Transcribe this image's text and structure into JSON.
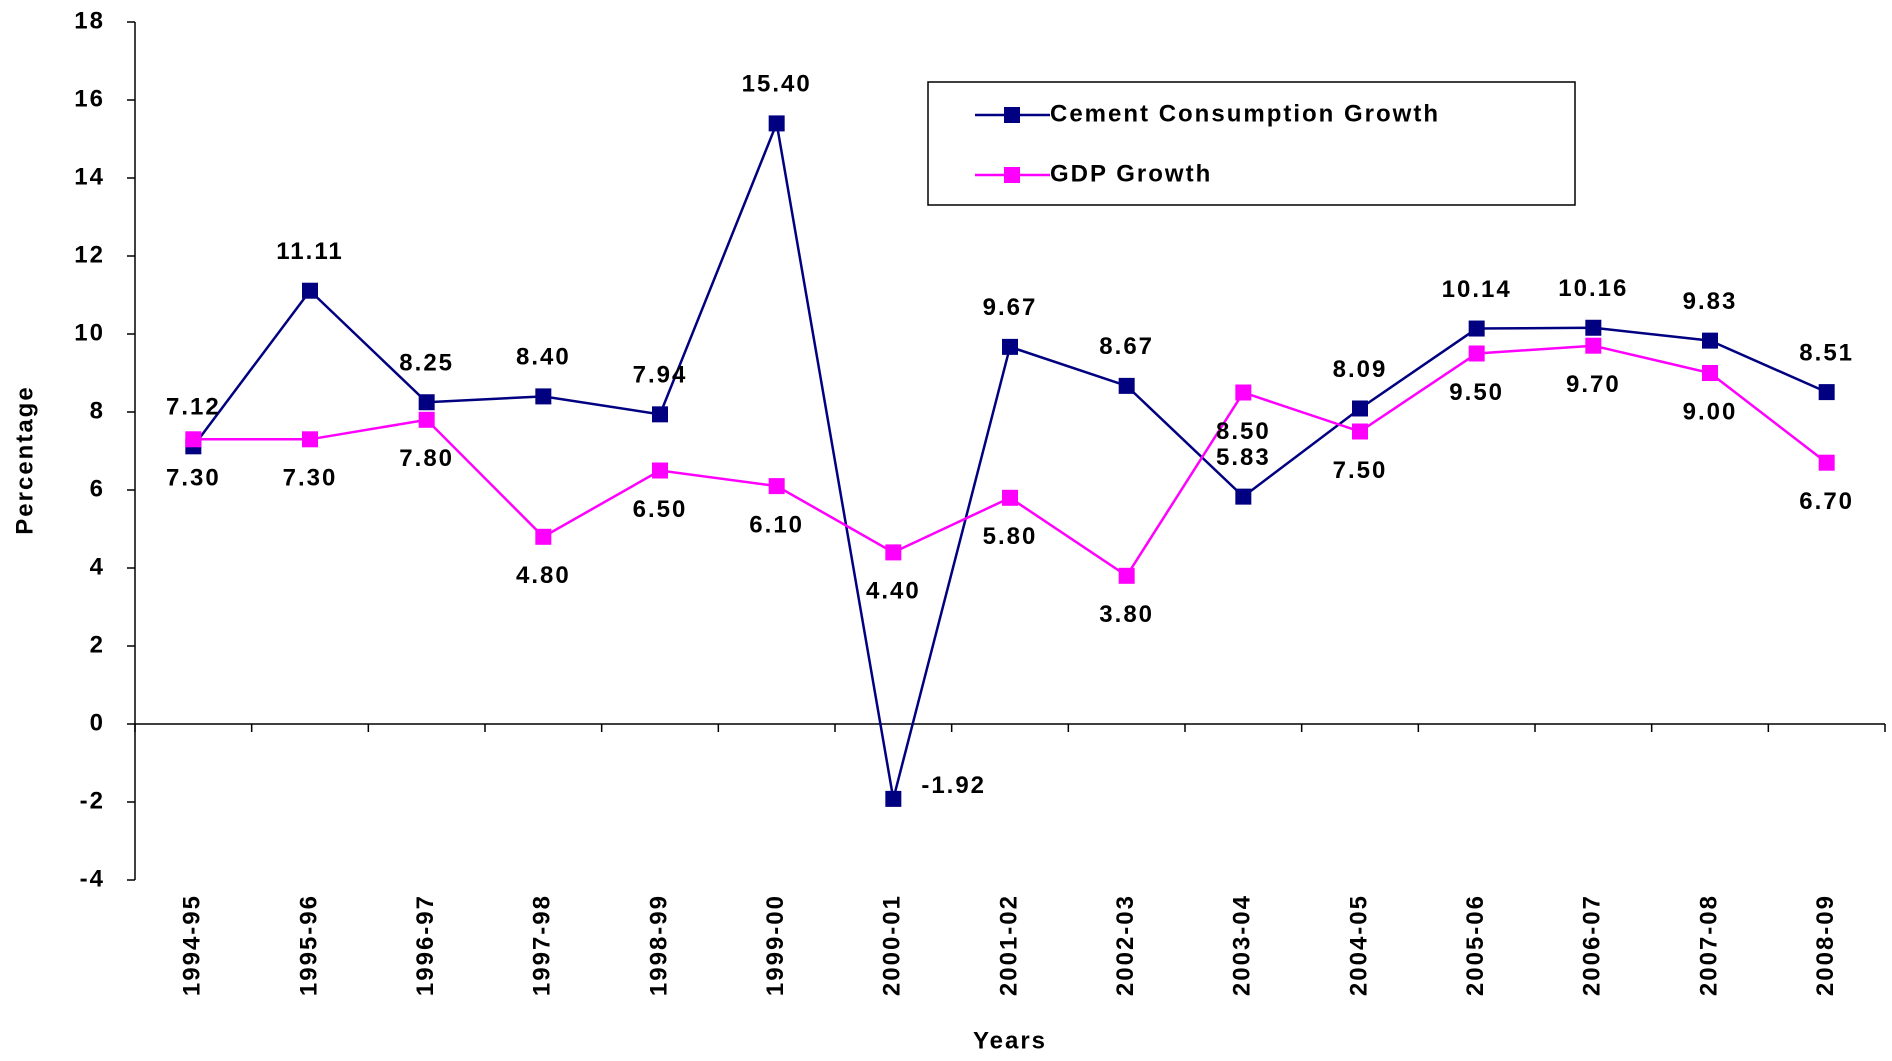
{
  "chart_data": {
    "type": "line",
    "x_label": "Years",
    "y_label": "Percentage",
    "categories": [
      "1994-95",
      "1995-96",
      "1996-97",
      "1997-98",
      "1998-99",
      "1999-00",
      "2000-01",
      "2001-02",
      "2002-03",
      "2003-04",
      "2004-05",
      "2005-06",
      "2006-07",
      "2007-08",
      "2008-09"
    ],
    "series": [
      {
        "name": "Cement Consumption Growth",
        "color": "#000080",
        "values": [
          7.12,
          11.11,
          8.25,
          8.4,
          7.94,
          15.4,
          -1.92,
          9.67,
          8.67,
          5.83,
          8.09,
          10.14,
          10.16,
          9.83,
          8.51
        ],
        "value_labels": [
          "7.12",
          "11.11",
          "8.25",
          "8.40",
          "7.94",
          "15.40",
          "-1.92",
          "9.67",
          "8.67",
          "5.83",
          "8.09",
          "10.14",
          "10.16",
          "9.83",
          "8.51"
        ]
      },
      {
        "name": "GDP Growth",
        "color": "#ff00ff",
        "values": [
          7.3,
          7.3,
          7.8,
          4.8,
          6.5,
          6.1,
          4.4,
          5.8,
          3.8,
          8.5,
          7.5,
          9.5,
          9.7,
          9.0,
          6.7
        ],
        "value_labels": [
          "7.30",
          "7.30",
          "7.80",
          "4.80",
          "6.50",
          "6.10",
          "4.40",
          "5.80",
          "3.80",
          "8.50",
          "7.50",
          "9.50",
          "9.70",
          "9.00",
          "6.70"
        ]
      }
    ],
    "ylim": [
      -4,
      18
    ],
    "yticks": [
      -4,
      -2,
      0,
      2,
      4,
      6,
      8,
      10,
      12,
      14,
      16,
      18
    ],
    "grid": false
  }
}
